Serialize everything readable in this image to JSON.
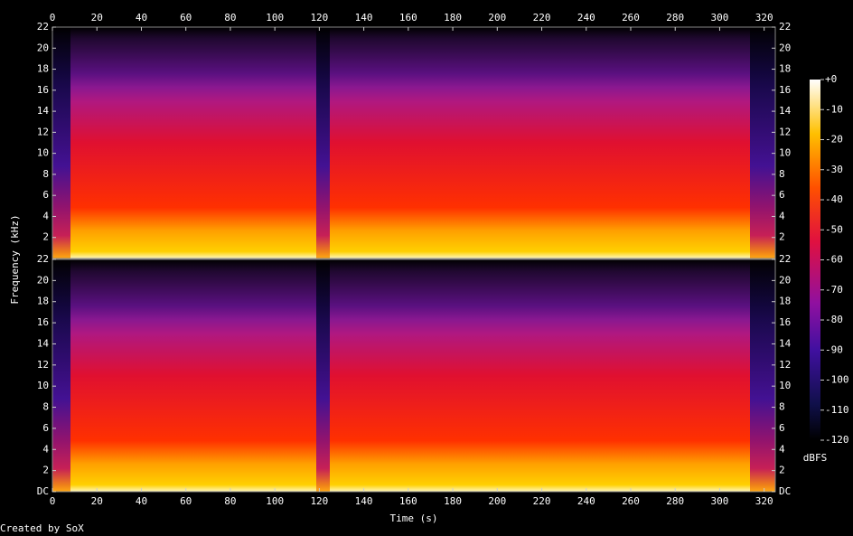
{
  "chart_data": [
    {
      "type": "spectrogram",
      "ylabel": "Frequency (kHz)",
      "xlim": [
        0,
        325
      ],
      "xticks": [
        0,
        20,
        40,
        60,
        80,
        100,
        120,
        140,
        160,
        180,
        200,
        220,
        240,
        260,
        280,
        300,
        320
      ],
      "ylim": [
        0,
        22
      ],
      "yticks": [
        2,
        4,
        6,
        8,
        10,
        12,
        14,
        16,
        18,
        20,
        22
      ]
    },
    {
      "type": "spectrogram",
      "xlabel": "Time (s)",
      "xlim": [
        0,
        325
      ],
      "xticks": [
        0,
        20,
        40,
        60,
        80,
        100,
        120,
        140,
        160,
        180,
        200,
        220,
        240,
        260,
        280,
        300,
        320
      ],
      "ylim": [
        0,
        22
      ],
      "yticks": [
        {
          "value": 0,
          "label": "DC"
        },
        2,
        4,
        6,
        8,
        10,
        12,
        14,
        16,
        18,
        20,
        22
      ]
    }
  ],
  "colorbar": {
    "label": "dBFS",
    "lim": [
      -120,
      0
    ],
    "ticks": [
      {
        "value": 0,
        "label": "+0"
      },
      -10,
      -20,
      -30,
      -40,
      -50,
      -60,
      -70,
      -80,
      -90,
      -100,
      -110,
      -120
    ]
  },
  "footer": "Created by SoX"
}
